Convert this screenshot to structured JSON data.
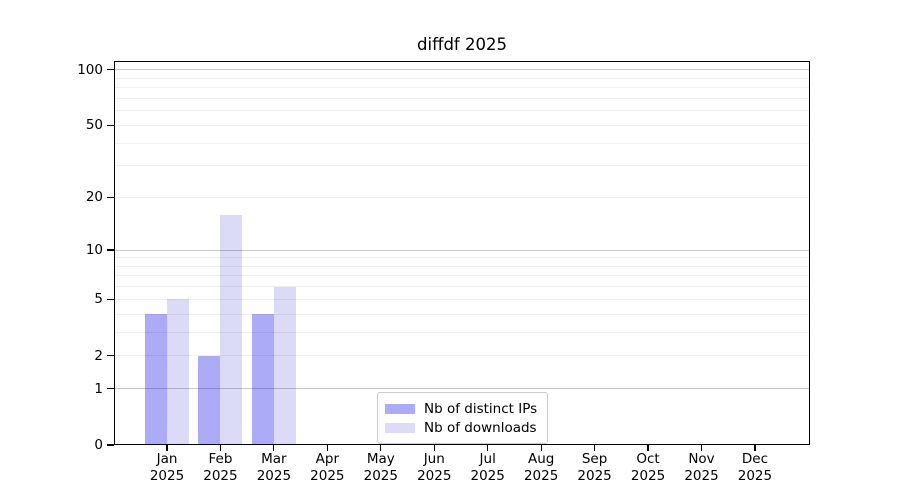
{
  "title": "diffdf 2025",
  "legend": {
    "items": [
      {
        "label": "Nb of distinct IPs",
        "color": "#ababf6"
      },
      {
        "label": "Nb of downloads",
        "color": "#dcdcf8"
      }
    ]
  },
  "chart_data": {
    "type": "bar",
    "title": "diffdf 2025",
    "categories": [
      "Jan",
      "Feb",
      "Mar",
      "Apr",
      "May",
      "Jun",
      "Jul",
      "Aug",
      "Sep",
      "Oct",
      "Nov",
      "Dec"
    ],
    "year_label": "2025",
    "series": [
      {
        "name": "Nb of distinct IPs",
        "values": [
          4,
          2,
          4,
          0,
          0,
          0,
          0,
          0,
          0,
          0,
          0,
          0
        ],
        "color": "#ababf6",
        "color_rgba": "rgba(0,0,230,0.33)"
      },
      {
        "name": "Nb of downloads",
        "values": [
          5,
          16,
          6,
          0,
          0,
          0,
          0,
          0,
          0,
          0,
          0,
          0
        ],
        "color": "#dcdcf8",
        "color_rgba": "rgba(0,0,205,0.14)"
      }
    ],
    "xlabel": "",
    "ylabel": "",
    "y_axis": {
      "scale": "log1p",
      "tick_values": [
        0,
        1,
        2,
        5,
        10,
        20,
        50,
        100
      ],
      "major_grid_values": [
        1,
        10,
        100
      ],
      "minor_grid_values": [
        2,
        3,
        4,
        5,
        6,
        7,
        8,
        9,
        20,
        30,
        40,
        50,
        60,
        70,
        80,
        90
      ],
      "ylim": [
        0,
        112
      ]
    },
    "grid": {
      "on": true,
      "major_color": "#c9c9c9",
      "minor_color": "#efefef"
    },
    "legend_position": "lower center"
  }
}
